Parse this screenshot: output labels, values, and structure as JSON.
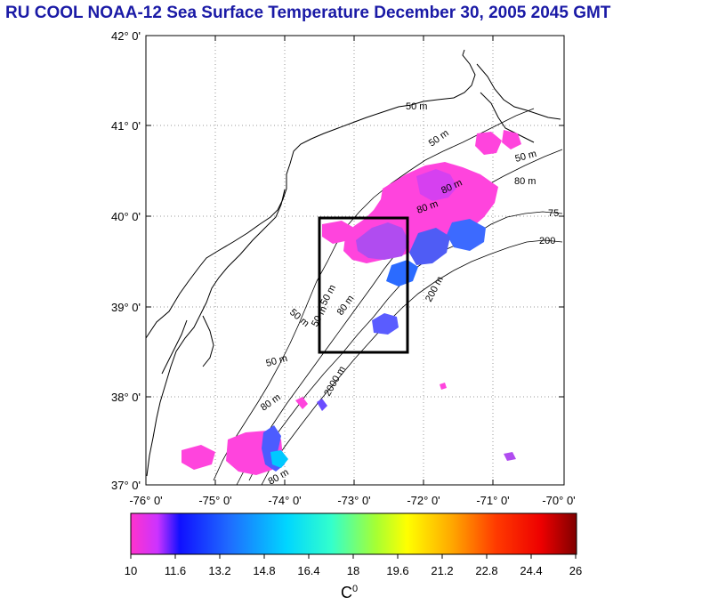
{
  "title": "RU COOL  NOAA-12 Sea Surface Temperature December 30, 2005 2045 GMT",
  "map": {
    "lat_labels": [
      "42° 0'",
      "41° 0'",
      "40° 0'",
      "39° 0'",
      "38° 0'",
      "37° 0'"
    ],
    "lon_labels": [
      "-76° 0'",
      "-75° 0'",
      "-74° 0'",
      "-73° 0'",
      "-72° 0'",
      "-71° 0'",
      "-70° 0'"
    ],
    "contour_labels": [
      "50 m",
      "50 m",
      "80 m",
      "80 m",
      "50 m",
      "75",
      "200",
      "50 m",
      "50 m",
      "80 m",
      "80 m",
      "200 m",
      "50 m",
      "2000 m",
      "80 m",
      "50 m",
      "80 m"
    ],
    "box": {
      "lon_min": -73.5,
      "lon_max": -72.3,
      "lat_min": 38.5,
      "lat_max": 40.0
    }
  },
  "colorbar": {
    "tick_labels": [
      "10",
      "11.6",
      "13.2",
      "14.8",
      "16.4",
      "18",
      "19.6",
      "21.2",
      "22.8",
      "24.4",
      "26"
    ],
    "unit": "C",
    "unit_sup": "0"
  },
  "colors": {
    "title": "#1a1aa6",
    "grid": "#999999",
    "cold_patch": "#ff44dd",
    "violet_patch": "#9a3cff"
  }
}
